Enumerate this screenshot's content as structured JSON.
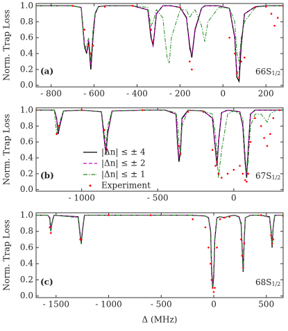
{
  "chart_data": [
    {
      "type": "line",
      "panel_label": "(a)",
      "state_label": "66S",
      "state_sub": "1/2",
      "ylabel": "Norm. Trap Loss",
      "xlim": [
        -870,
        280
      ],
      "ylim": [
        -0.02,
        1.03
      ],
      "xticks": [
        {
          "value": -800,
          "label": "- 800"
        },
        {
          "value": -600,
          "label": "- 600"
        },
        {
          "value": -400,
          "label": "- 400"
        },
        {
          "value": -200,
          "label": "- 200"
        },
        0,
        200
      ],
      "yticks": [
        {
          "value": 0,
          "label": "0.0"
        },
        0.2,
        0.4,
        0.6,
        0.8,
        {
          "value": 1,
          "label": "1.0"
        }
      ],
      "x": [
        -870,
        -700,
        -660,
        -645,
        -635,
        -625,
        -615,
        -605,
        -595,
        -580,
        -550,
        -420,
        -350,
        -335,
        -325,
        -310,
        -280,
        -260,
        -250,
        -240,
        -200,
        -170,
        -155,
        -145,
        -130,
        -100,
        -85,
        -70,
        -20,
        30,
        55,
        65,
        75,
        85,
        100,
        150,
        200,
        225,
        240,
        255,
        280
      ],
      "series": [
        {
          "color": "#000000",
          "style": "solid",
          "values": [
            1,
            1,
            0.98,
            0.5,
            0.4,
            0.55,
            0.2,
            0.6,
            0.9,
            0.99,
            1,
            1,
            0.95,
            0.6,
            0.5,
            0.9,
            1,
            1,
            1,
            1,
            0.98,
            0.85,
            0.5,
            0.35,
            0.7,
            0.97,
            1,
            1,
            1,
            0.97,
            0.6,
            0.1,
            0.05,
            0.5,
            0.9,
            0.99,
            1,
            1,
            1,
            1,
            1
          ]
        },
        {
          "color": "#cc00cc",
          "style": "dashed",
          "values": [
            1,
            1,
            0.98,
            0.52,
            0.42,
            0.57,
            0.25,
            0.62,
            0.9,
            0.99,
            1,
            1,
            0.95,
            0.65,
            0.48,
            0.9,
            1,
            1,
            1,
            1,
            0.98,
            0.86,
            0.45,
            0.38,
            0.72,
            0.97,
            1,
            1,
            1,
            0.97,
            0.62,
            0.15,
            0.2,
            0.55,
            0.9,
            0.99,
            1,
            1,
            1,
            1,
            1
          ]
        },
        {
          "color": "#228b22",
          "style": "dashdot",
          "values": [
            1,
            1,
            0.98,
            0.45,
            0.5,
            0.6,
            0.3,
            0.7,
            0.92,
            0.99,
            1,
            1,
            0.98,
            0.75,
            0.8,
            0.95,
            0.85,
            0.35,
            0.28,
            0.6,
            0.95,
            0.95,
            0.85,
            0.9,
            0.95,
            0.75,
            0.55,
            0.8,
            0.98,
            0.97,
            0.8,
            0.4,
            0.3,
            0.6,
            0.8,
            0.98,
            1,
            1,
            1,
            1,
            1
          ]
        },
        {
          "color": "#ff0000",
          "style": "dots",
          "values": [
            null,
            1,
            null,
            0.7,
            null,
            0.5,
            0.4,
            0.5,
            null,
            null,
            0.99,
            1,
            null,
            0.7,
            0.55,
            null,
            null,
            null,
            null,
            null,
            0.98,
            null,
            0.3,
            0.2,
            null,
            null,
            null,
            null,
            null,
            0.6,
            0.4,
            0.15,
            0.1,
            0.3,
            0.35,
            0.98,
            0.99,
            0.9,
            0.75,
            0.85,
            1
          ]
        }
      ]
    },
    {
      "type": "line",
      "panel_label": "(b)",
      "state_label": "67S",
      "state_sub": "1/2",
      "ylabel": "Norm. Trap Loss",
      "xlim": [
        -1300,
        325
      ],
      "ylim": [
        -0.02,
        1.03
      ],
      "legend": "center-left",
      "xticks": [
        {
          "value": -1000,
          "label": "- 1000"
        },
        {
          "value": -500,
          "label": "- 500"
        },
        0
      ],
      "yticks": [
        {
          "value": 0,
          "label": "0.0"
        },
        0.2,
        0.4,
        0.6,
        0.8,
        {
          "value": 1,
          "label": "1.0"
        }
      ],
      "x": [
        -1300,
        -1180,
        -1165,
        -1155,
        -1145,
        -1120,
        -1000,
        -870,
        -850,
        -840,
        -830,
        -800,
        -600,
        -450,
        -380,
        -370,
        -360,
        -350,
        -340,
        -300,
        -200,
        -140,
        -120,
        -110,
        -100,
        -80,
        -40,
        0,
        40,
        60,
        75,
        85,
        95,
        110,
        140,
        180,
        200,
        220,
        240,
        260,
        280,
        300,
        325
      ],
      "series": [
        {
          "name": "|Δn| ≤ ± 4",
          "color": "#000000",
          "style": "solid",
          "values": [
            1,
            1,
            0.9,
            0.7,
            0.8,
            0.99,
            1,
            0.98,
            0.6,
            0.45,
            0.7,
            0.99,
            1,
            1,
            0.95,
            0.6,
            0.35,
            0.5,
            0.9,
            1,
            0.99,
            0.9,
            0.5,
            0.3,
            0.6,
            0.97,
            1,
            0.99,
            0.98,
            0.8,
            0.35,
            0.15,
            0.5,
            0.95,
            1,
            1,
            1,
            1,
            1,
            1,
            1,
            1,
            1
          ]
        },
        {
          "name": "|Δn| ≤ ± 2",
          "color": "#cc00cc",
          "style": "dashed",
          "values": [
            1,
            1,
            0.9,
            0.72,
            0.82,
            0.99,
            1,
            0.98,
            0.62,
            0.47,
            0.72,
            0.99,
            1,
            1,
            0.95,
            0.65,
            0.4,
            0.45,
            0.88,
            1,
            0.99,
            0.9,
            0.52,
            0.32,
            0.62,
            0.97,
            1,
            0.99,
            0.98,
            0.8,
            0.38,
            0.18,
            0.5,
            0.95,
            1,
            1,
            1,
            1,
            1,
            1,
            1,
            1,
            1
          ]
        },
        {
          "name": "|Δn| ≤ ± 1",
          "color": "#228b22",
          "style": "dashdot",
          "values": [
            1,
            1,
            0.7,
            0.75,
            0.85,
            0.99,
            1,
            0.98,
            0.7,
            0.55,
            0.8,
            0.99,
            1,
            1,
            0.97,
            0.85,
            0.6,
            0.42,
            0.8,
            1,
            0.99,
            0.95,
            0.7,
            0.4,
            0.15,
            0.5,
            0.95,
            0.99,
            0.95,
            0.9,
            0.45,
            0.2,
            0.35,
            0.8,
            0.95,
            0.95,
            0.9,
            0.85,
            0.95,
            0.98,
            1,
            1,
            1
          ]
        },
        {
          "name": "Experiment",
          "color": "#ff0000",
          "style": "dots",
          "values": [
            1,
            null,
            0.7,
            0.8,
            null,
            null,
            1,
            null,
            0.75,
            0.5,
            null,
            null,
            1,
            null,
            null,
            null,
            0.55,
            0.45,
            null,
            0.98,
            0.98,
            0.5,
            0.3,
            0.35,
            0.2,
            0.15,
            0.2,
            0.25,
            0.3,
            0.2,
            0.12,
            0.1,
            0.2,
            0.6,
            0.9,
            0.8,
            0.65,
            0.55,
            0.7,
            0.9,
            null,
            1,
            null
          ]
        }
      ]
    },
    {
      "type": "line",
      "panel_label": "(c)",
      "state_label": "68S",
      "state_sub": "1/2",
      "ylabel": "Norm. Trap Loss",
      "xlabel": "Δ (MHz)",
      "xlim": [
        -1690,
        660
      ],
      "ylim": [
        -0.02,
        1.03
      ],
      "xticks": [
        {
          "value": -1500,
          "label": "- 1500"
        },
        {
          "value": -1000,
          "label": "- 1000"
        },
        {
          "value": -500,
          "label": "- 500"
        },
        0,
        500
      ],
      "yticks": [
        {
          "value": 0,
          "label": "0.0"
        },
        0.2,
        0.4,
        0.6,
        0.8,
        {
          "value": 1,
          "label": "1.0"
        }
      ],
      "x": [
        -1690,
        -1580,
        -1560,
        -1550,
        -1540,
        -1520,
        -1290,
        -1270,
        -1260,
        -1250,
        -1230,
        -1000,
        -600,
        -200,
        -80,
        -50,
        -30,
        -20,
        -10,
        0,
        10,
        30,
        60,
        100,
        150,
        200,
        240,
        260,
        270,
        280,
        290,
        300,
        350,
        450,
        530,
        545,
        555,
        565,
        580,
        620,
        660
      ],
      "series": [
        {
          "color": "#000000",
          "style": "solid",
          "values": [
            1,
            1,
            0.97,
            0.8,
            0.9,
            1,
            0.98,
            0.75,
            0.65,
            0.8,
            1,
            1,
            1,
            1,
            0.99,
            0.97,
            0.8,
            0.3,
            0.1,
            0.25,
            0.7,
            0.97,
            0.98,
            0.97,
            0.99,
            1,
            0.98,
            0.9,
            0.6,
            0.3,
            0.7,
            0.97,
            1,
            1,
            0.98,
            0.8,
            0.6,
            0.85,
            1,
            1,
            1
          ]
        },
        {
          "color": "#cc00cc",
          "style": "dashed",
          "values": [
            1,
            1,
            0.97,
            0.82,
            0.9,
            1,
            0.98,
            0.77,
            0.67,
            0.82,
            1,
            1,
            1,
            1,
            0.99,
            0.97,
            0.82,
            0.35,
            0.15,
            0.28,
            0.72,
            0.97,
            0.98,
            0.97,
            0.99,
            1,
            0.98,
            0.9,
            0.62,
            0.33,
            0.72,
            0.97,
            1,
            1,
            0.98,
            0.82,
            0.62,
            0.86,
            1,
            1,
            1
          ]
        },
        {
          "color": "#228b22",
          "style": "dashdot",
          "values": [
            1,
            1,
            0.95,
            0.78,
            0.88,
            1,
            0.97,
            0.72,
            0.64,
            0.82,
            1,
            1,
            1,
            1,
            0.99,
            0.96,
            0.78,
            0.28,
            0.12,
            0.3,
            0.72,
            0.97,
            0.98,
            0.97,
            0.99,
            1,
            0.97,
            0.88,
            0.58,
            0.32,
            0.72,
            0.97,
            1,
            1,
            0.97,
            0.78,
            0.62,
            0.86,
            1,
            1,
            1
          ]
        },
        {
          "color": "#ff0000",
          "style": "dots",
          "values": [
            null,
            null,
            0.85,
            0.78,
            null,
            null,
            null,
            0.7,
            0.7,
            null,
            null,
            1,
            1,
            0.95,
            0.85,
            0.6,
            0.4,
            0.2,
            0.1,
            0.05,
            0.1,
            0.6,
            0.95,
            0.97,
            0.98,
            null,
            null,
            0.7,
            0.5,
            0.35,
            0.65,
            null,
            null,
            1,
            null,
            0.75,
            0.65,
            0.7,
            null,
            null,
            0.99
          ]
        }
      ]
    }
  ]
}
